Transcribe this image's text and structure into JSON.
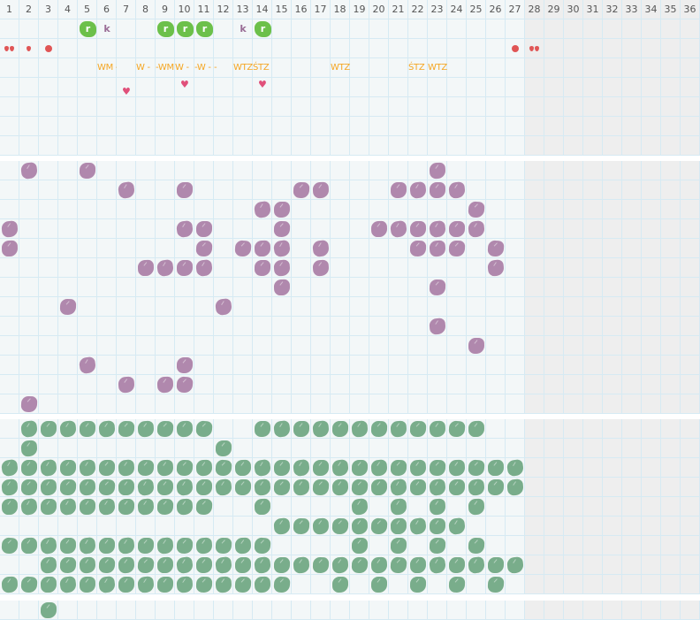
{
  "columns": [
    "1",
    "2",
    "3",
    "4",
    "5",
    "6",
    "7",
    "8",
    "9",
    "10",
    "11",
    "12",
    "13",
    "14",
    "15",
    "16",
    "17",
    "18",
    "19",
    "20",
    "21",
    "22",
    "23",
    "24",
    "25",
    "26",
    "27",
    "28",
    "29",
    "30",
    "31",
    "32",
    "33",
    "34",
    "35",
    "36"
  ],
  "active_columns": 27,
  "colors": {
    "purple_mark": "#b088ad",
    "green_mark": "#79ad8b",
    "r_badge": "#6cc04a",
    "k_letter": "#9a6d96",
    "drop": "#e05555",
    "heart": "#e0507a",
    "label": "#f5a623",
    "inactive_bg": "#eeeeee",
    "grid_line": "#d6eaf3"
  },
  "top_section": {
    "row_count": 7,
    "badges": [
      {
        "col": 5,
        "text": "r",
        "icon": "r-badge-icon"
      },
      {
        "col": 6,
        "text": "k",
        "icon": "k-letter-icon"
      },
      {
        "col": 9,
        "text": "r",
        "icon": "r-badge-icon"
      },
      {
        "col": 10,
        "text": "r",
        "icon": "r-badge-icon"
      },
      {
        "col": 11,
        "text": "r",
        "icon": "r-badge-icon"
      },
      {
        "col": 13,
        "text": "k",
        "icon": "k-letter-icon"
      },
      {
        "col": 14,
        "text": "r",
        "icon": "r-badge-icon"
      }
    ],
    "drops": [
      {
        "col": 1,
        "icon": "double-drop-icon"
      },
      {
        "col": 2,
        "icon": "drop-icon"
      },
      {
        "col": 3,
        "icon": "dot-icon"
      },
      {
        "col": 27,
        "icon": "dot-icon"
      },
      {
        "col": 28,
        "icon": "double-drop-icon"
      }
    ],
    "labels": [
      {
        "col": 6,
        "text": "WM -"
      },
      {
        "col": 8,
        "text": "W -"
      },
      {
        "col": 9,
        "text": "-WM -"
      },
      {
        "col": 10,
        "text": "W -"
      },
      {
        "col": 11,
        "text": "-W -"
      },
      {
        "col": 12,
        "text": "-"
      },
      {
        "col": 13,
        "text": "WTZ"
      },
      {
        "col": 14,
        "text": "ŚTZ"
      },
      {
        "col": 18,
        "text": "WTZ"
      },
      {
        "col": 22,
        "text": "ŚTZ"
      },
      {
        "col": 23,
        "text": "WTZ"
      }
    ],
    "hearts": [
      {
        "col": 7,
        "text": "♥"
      },
      {
        "col": 10,
        "text": "♥"
      },
      {
        "col": 14,
        "text": "♥"
      }
    ]
  },
  "purple_section": {
    "rows": [
      [
        2,
        5,
        23
      ],
      [
        7,
        10,
        16,
        17,
        21,
        22,
        23,
        24
      ],
      [
        14,
        15,
        25
      ],
      [
        1,
        10,
        11,
        15,
        20,
        21,
        22,
        23,
        24,
        25
      ],
      [
        1,
        11,
        13,
        14,
        15,
        17,
        22,
        23,
        24,
        26
      ],
      [
        8,
        9,
        10,
        11,
        14,
        15,
        17,
        26
      ],
      [
        15,
        23
      ],
      [
        4,
        12
      ],
      [
        23
      ],
      [
        25
      ],
      [
        5,
        10
      ],
      [
        7,
        9,
        10
      ],
      [
        2
      ]
    ]
  },
  "green_section": {
    "rows": [
      [
        2,
        3,
        4,
        5,
        6,
        7,
        8,
        9,
        10,
        11,
        14,
        15,
        16,
        17,
        18,
        19,
        20,
        21,
        22,
        23,
        24,
        25
      ],
      [
        2,
        12
      ],
      [
        1,
        2,
        3,
        4,
        5,
        6,
        7,
        8,
        9,
        10,
        11,
        12,
        13,
        14,
        15,
        16,
        17,
        18,
        19,
        20,
        21,
        22,
        23,
        24,
        25,
        26,
        27
      ],
      [
        1,
        2,
        3,
        4,
        5,
        6,
        7,
        8,
        9,
        10,
        11,
        12,
        13,
        14,
        15,
        16,
        17,
        18,
        19,
        20,
        21,
        22,
        23,
        24,
        25,
        26,
        27
      ],
      [
        1,
        2,
        3,
        4,
        5,
        6,
        7,
        8,
        9,
        10,
        11,
        14,
        19,
        21,
        23,
        25
      ],
      [
        15,
        16,
        17,
        18,
        19,
        20,
        21,
        22,
        23,
        24
      ],
      [
        1,
        2,
        3,
        4,
        5,
        6,
        7,
        8,
        9,
        10,
        11,
        12,
        13,
        14,
        19,
        21,
        23,
        25
      ],
      [
        3,
        4,
        5,
        6,
        7,
        8,
        9,
        10,
        11,
        12,
        13,
        14,
        15,
        16,
        17,
        18,
        19,
        20,
        21,
        22,
        23,
        24,
        25,
        26,
        27
      ],
      [
        1,
        2,
        3,
        4,
        5,
        6,
        7,
        8,
        9,
        10,
        11,
        12,
        13,
        14,
        15,
        18,
        20,
        22,
        24,
        26
      ]
    ]
  },
  "bottom_section": {
    "rows": [
      [
        3
      ]
    ]
  }
}
